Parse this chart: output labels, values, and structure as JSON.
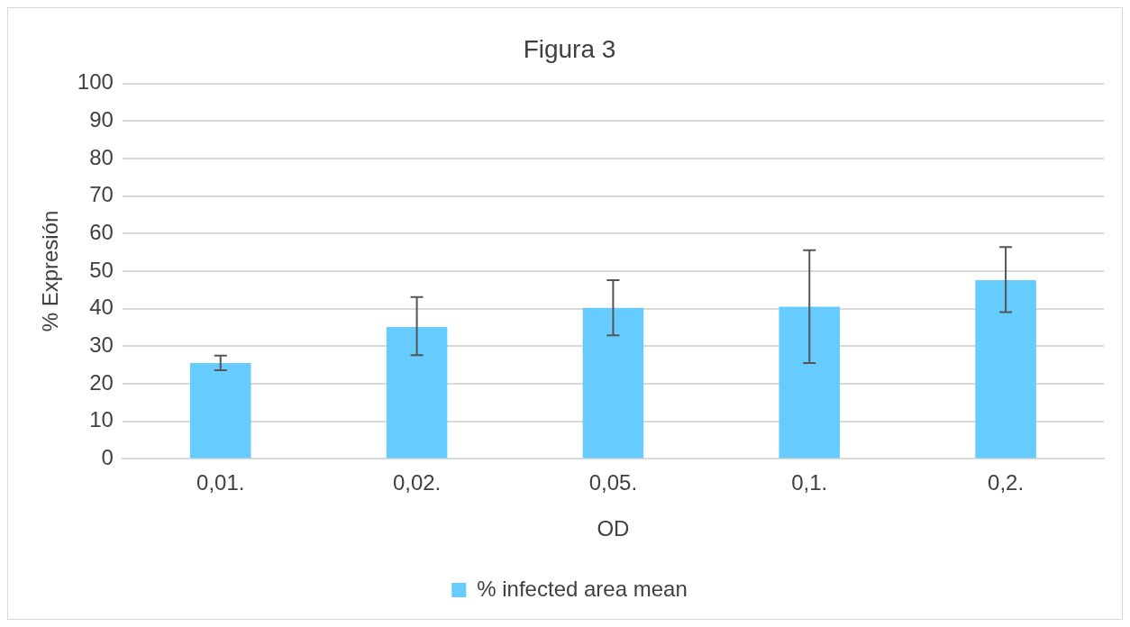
{
  "chart_data": {
    "type": "bar",
    "title": "Figura 3",
    "xlabel": "OD",
    "ylabel": "% Expresión",
    "categories": [
      "0,01.",
      "0,02.",
      "0,05.",
      "0,1.",
      "0,2."
    ],
    "series": [
      {
        "name": "% infected area mean",
        "color": "#66ccff",
        "values": [
          25.5,
          35.1,
          40.2,
          40.5,
          47.6
        ],
        "errors": [
          [
            23.6,
            27.5
          ],
          [
            27.6,
            43.1
          ],
          [
            32.9,
            47.6
          ],
          [
            25.5,
            55.6
          ],
          [
            39.1,
            56.4
          ]
        ]
      }
    ],
    "ylim": [
      0,
      100
    ],
    "yticks": [
      0,
      10,
      20,
      30,
      40,
      50,
      60,
      70,
      80,
      90,
      100
    ],
    "grid": "y",
    "legend": "bottom"
  }
}
